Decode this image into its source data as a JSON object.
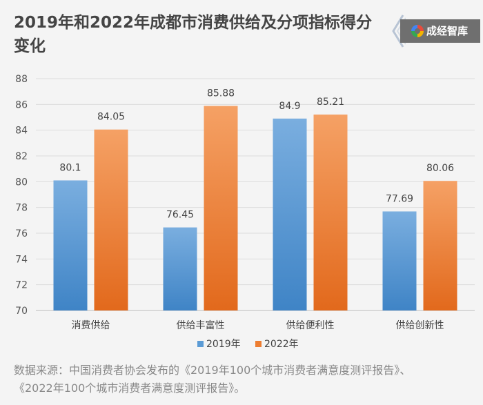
{
  "title": "2019年和2022年成都市消费供给及分项指标得分变化",
  "brand": {
    "name": "成经智库",
    "logo_icon": "chengjing-logo-icon"
  },
  "source": {
    "line1": "数据来源：中国消费者协会发布的《2019年100个城市消费者满意度测评报告》、",
    "line2": "《2022年100个城市消费者满意度测评报告》。"
  },
  "chart_data": {
    "type": "bar",
    "categories": [
      "消费供给",
      "供给丰富性",
      "供给便利性",
      "供给创新性"
    ],
    "series": [
      {
        "name": "2019年",
        "values": [
          80.1,
          76.45,
          84.9,
          77.69
        ],
        "color": "#5b9bd5"
      },
      {
        "name": "2022年",
        "values": [
          84.05,
          85.88,
          85.21,
          80.06
        ],
        "color": "#ed7d31"
      }
    ],
    "value_labels": [
      [
        "80.1",
        "76.45",
        "84.9",
        "77.69"
      ],
      [
        "84.05",
        "85.88",
        "85.21",
        "80.06"
      ]
    ],
    "ylim": [
      70,
      88
    ],
    "yticks": [
      "70",
      "72",
      "74",
      "76",
      "78",
      "80",
      "82",
      "84",
      "86",
      "88"
    ],
    "grid": true,
    "legend_position": "bottom"
  }
}
